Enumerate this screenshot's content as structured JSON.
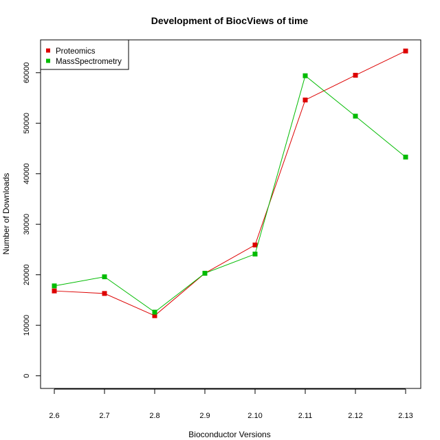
{
  "chart_data": {
    "type": "line",
    "title": "Development of BiocViews of time",
    "xlabel": "Bioconductor Versions",
    "ylabel": "Number of Downloads",
    "categories": [
      "2.6",
      "2.7",
      "2.8",
      "2.9",
      "2.10",
      "2.11",
      "2.12",
      "2.13"
    ],
    "yticks": [
      0,
      10000,
      20000,
      30000,
      40000,
      50000,
      60000
    ],
    "ylim": [
      -2500,
      66500
    ],
    "grid": false,
    "legend_position": "top-left",
    "series": [
      {
        "name": "Proteomics",
        "color": "#dd0000",
        "values": [
          16800,
          16300,
          11900,
          20300,
          25900,
          54600,
          59500,
          64300
        ]
      },
      {
        "name": "MassSpectrometry",
        "color": "#00bb00",
        "values": [
          17800,
          19600,
          12600,
          20300,
          24100,
          59400,
          51400,
          43300
        ]
      }
    ]
  }
}
